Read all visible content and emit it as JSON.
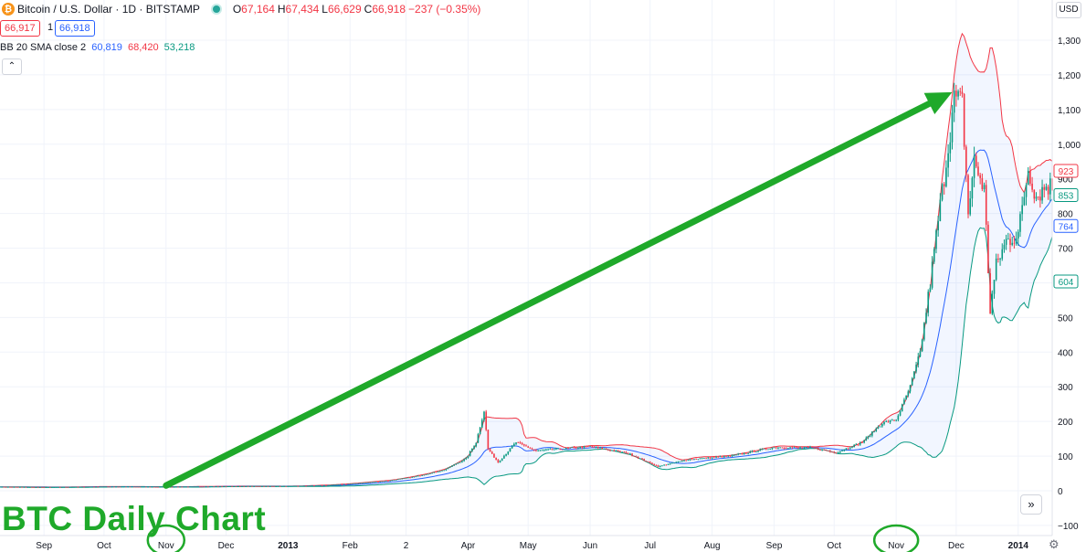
{
  "header": {
    "coin_glyph": "₿",
    "symbol": "Bitcoin / U.S. Dollar · 1D · BITSTAMP",
    "open_label": "O",
    "open": "67,164",
    "high_label": "H",
    "high": "67,434",
    "low_label": "L",
    "low": "66,629",
    "close_label": "C",
    "close": "66,918",
    "change": "−237 (−0.35%)",
    "bid": "66,917",
    "qty": "1",
    "ask": "66,918"
  },
  "indicator": {
    "name": "BB 20 SMA close 2",
    "basis": "60,819",
    "upper": "68,420",
    "lower": "53,218"
  },
  "controls": {
    "collapse_glyph": "⌃",
    "currency": "USD",
    "scroll_glyph": "»",
    "gear_glyph": "⚙"
  },
  "watermark": "BTC Daily Chart",
  "colors": {
    "up": "#089981",
    "down": "#f23645",
    "basis": "#2962ff",
    "upper": "#f23645",
    "lower": "#089981",
    "band_fill": "#2962ff",
    "arrow": "#1fa92a",
    "grid": "#f0f3fa"
  },
  "chart_data": {
    "type": "candlestick",
    "title": "",
    "xlabel": "",
    "ylabel": "",
    "x_range": [
      "2012-08-10",
      "2014-01-18"
    ],
    "ylim": [
      -100,
      1320
    ],
    "grid": true,
    "y_ticks": [
      -100,
      0,
      100,
      200,
      300,
      400,
      500,
      600,
      700,
      800,
      900,
      1000,
      1100,
      1200,
      1300
    ],
    "y_tick_labels": [
      "−100",
      "0",
      "100",
      "200",
      "300",
      "400",
      "500",
      "600",
      "700",
      "800",
      "900",
      "1,000",
      "1,100",
      "1,200",
      "1,300"
    ],
    "x_ticks": [
      {
        "date": "2012-09-01",
        "label": "Sep"
      },
      {
        "date": "2012-10-01",
        "label": "Oct"
      },
      {
        "date": "2012-11-01",
        "label": "Nov",
        "circled": true
      },
      {
        "date": "2012-12-01",
        "label": "Dec"
      },
      {
        "date": "2013-01-01",
        "label": "2013",
        "bold": true
      },
      {
        "date": "2013-02-01",
        "label": "Feb"
      },
      {
        "date": "2013-03-01",
        "label": "2"
      },
      {
        "date": "2013-04-01",
        "label": "Apr"
      },
      {
        "date": "2013-05-01",
        "label": "May"
      },
      {
        "date": "2013-06-01",
        "label": "Jun"
      },
      {
        "date": "2013-07-01",
        "label": "Jul"
      },
      {
        "date": "2013-08-01",
        "label": "Aug"
      },
      {
        "date": "2013-09-01",
        "label": "Sep"
      },
      {
        "date": "2013-10-01",
        "label": "Oct"
      },
      {
        "date": "2013-11-01",
        "label": "Nov",
        "circled": true
      },
      {
        "date": "2013-12-01",
        "label": "Dec"
      },
      {
        "date": "2014-01-01",
        "label": "2014",
        "bold": true
      }
    ],
    "price_points": [
      {
        "date": "2012-08-10",
        "price": 11
      },
      {
        "date": "2012-09-01",
        "price": 10
      },
      {
        "date": "2012-10-01",
        "price": 12
      },
      {
        "date": "2012-11-01",
        "price": 11
      },
      {
        "date": "2012-12-01",
        "price": 13
      },
      {
        "date": "2013-01-01",
        "price": 13
      },
      {
        "date": "2013-01-20",
        "price": 16
      },
      {
        "date": "2013-02-01",
        "price": 20
      },
      {
        "date": "2013-02-20",
        "price": 29
      },
      {
        "date": "2013-03-05",
        "price": 40
      },
      {
        "date": "2013-03-20",
        "price": 60
      },
      {
        "date": "2013-03-31",
        "price": 93
      },
      {
        "date": "2013-04-05",
        "price": 140
      },
      {
        "date": "2013-04-09",
        "price": 230
      },
      {
        "date": "2013-04-11",
        "price": 120
      },
      {
        "date": "2013-04-16",
        "price": 82
      },
      {
        "date": "2013-04-25",
        "price": 140
      },
      {
        "date": "2013-05-05",
        "price": 115
      },
      {
        "date": "2013-05-20",
        "price": 122
      },
      {
        "date": "2013-06-01",
        "price": 128
      },
      {
        "date": "2013-06-20",
        "price": 108
      },
      {
        "date": "2013-07-05",
        "price": 70
      },
      {
        "date": "2013-07-20",
        "price": 90
      },
      {
        "date": "2013-08-10",
        "price": 100
      },
      {
        "date": "2013-09-01",
        "price": 125
      },
      {
        "date": "2013-09-20",
        "price": 124
      },
      {
        "date": "2013-10-02",
        "price": 110
      },
      {
        "date": "2013-10-15",
        "price": 140
      },
      {
        "date": "2013-10-25",
        "price": 195
      },
      {
        "date": "2013-11-01",
        "price": 205
      },
      {
        "date": "2013-11-08",
        "price": 300
      },
      {
        "date": "2013-11-13",
        "price": 400
      },
      {
        "date": "2013-11-18",
        "price": 600
      },
      {
        "date": "2013-11-22",
        "price": 780
      },
      {
        "date": "2013-11-26",
        "price": 950
      },
      {
        "date": "2013-11-30",
        "price": 1130
      },
      {
        "date": "2013-12-04",
        "price": 1120
      },
      {
        "date": "2013-12-07",
        "price": 800
      },
      {
        "date": "2013-12-10",
        "price": 950
      },
      {
        "date": "2013-12-15",
        "price": 870
      },
      {
        "date": "2013-12-18",
        "price": 520
      },
      {
        "date": "2013-12-21",
        "price": 650
      },
      {
        "date": "2013-12-26",
        "price": 720
      },
      {
        "date": "2014-01-01",
        "price": 740
      },
      {
        "date": "2014-01-06",
        "price": 930
      },
      {
        "date": "2014-01-10",
        "price": 850
      },
      {
        "date": "2014-01-15",
        "price": 880
      }
    ],
    "series": [
      {
        "name": "Price",
        "kind": "candles"
      },
      {
        "name": "BB basis",
        "last_value": 764,
        "kind": "line"
      },
      {
        "name": "BB upper",
        "last_value": 923,
        "kind": "line"
      },
      {
        "name": "BB lower",
        "last_value": 604,
        "kind": "line"
      }
    ],
    "price_tags": [
      {
        "value": "923",
        "color": "#f23645"
      },
      {
        "value": "853",
        "color": "#089981"
      },
      {
        "value": "764",
        "color": "#2962ff"
      },
      {
        "value": "604",
        "color": "#089981"
      }
    ],
    "price_tag_levels": [
      923,
      853,
      764,
      604
    ],
    "annotation_arrow": {
      "from": {
        "date": "2012-11-01",
        "price": 15
      },
      "to": {
        "date": "2013-11-29",
        "price": 1150
      }
    }
  }
}
